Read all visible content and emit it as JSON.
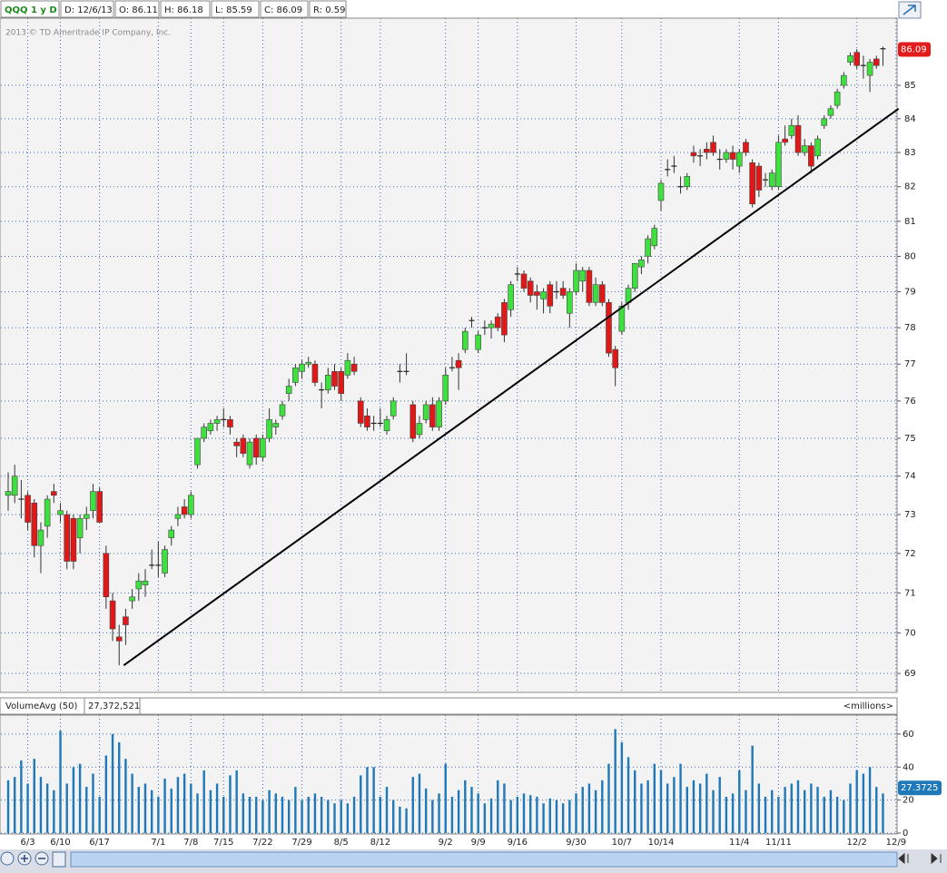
{
  "header": {
    "items": [
      "QQQ 1 y D",
      "D: 12/6/13",
      "O: 86.11",
      "H: 86.18",
      "L: 85.59",
      "C: 86.09",
      "R: 0.59"
    ],
    "copyright": "2013 © TD Ameritrade IP Company, Inc."
  },
  "chart_data": {
    "type": "candlestick",
    "log_scale": true,
    "grid": true,
    "colors": {
      "up": "#3ee03e",
      "down": "#e01818",
      "trendline": "#000000"
    },
    "categories": [
      null,
      null,
      null,
      "6/3",
      null,
      null,
      null,
      null,
      "6/10",
      null,
      null,
      null,
      null,
      null,
      "6/17",
      null,
      null,
      null,
      null,
      null,
      null,
      null,
      null,
      "7/1",
      null,
      null,
      null,
      null,
      "7/8",
      null,
      null,
      null,
      null,
      "7/15",
      null,
      null,
      null,
      null,
      null,
      "7/22",
      null,
      null,
      null,
      null,
      null,
      "7/29",
      null,
      null,
      null,
      null,
      null,
      "8/5",
      null,
      null,
      null,
      null,
      null,
      "8/12",
      null,
      null,
      null,
      null,
      null,
      null,
      null,
      null,
      null,
      "9/2",
      null,
      null,
      null,
      null,
      "9/9",
      null,
      null,
      null,
      null,
      null,
      "9/16",
      null,
      null,
      null,
      null,
      null,
      null,
      null,
      null,
      "9/30",
      null,
      null,
      null,
      null,
      null,
      null,
      "10/7",
      null,
      null,
      null,
      null,
      null,
      "10/14",
      null,
      null,
      null,
      null,
      null,
      null,
      null,
      null,
      null,
      null,
      null,
      "11/4",
      null,
      null,
      null,
      null,
      null,
      "11/11",
      null,
      null,
      null,
      null,
      null,
      null,
      null,
      null,
      null,
      null,
      null,
      "12/2",
      null,
      null,
      null,
      null,
      null,
      "12/9"
    ],
    "open": [
      73.5,
      73.5,
      73.4,
      73.5,
      73.3,
      72.2,
      72.7,
      73.6,
      73.0,
      73.0,
      72.9,
      72.4,
      72.9,
      73.1,
      73.6,
      72.0,
      70.8,
      69.9,
      70.4,
      70.8,
      71.1,
      71.2,
      71.7,
      71.7,
      71.5,
      72.4,
      72.9,
      73.2,
      73.0,
      74.3,
      75.0,
      75.2,
      75.4,
      75.5,
      75.5,
      74.9,
      75.0,
      74.3,
      75.0,
      74.5,
      75.0,
      75.3,
      75.6,
      76.2,
      76.5,
      76.8,
      77.0,
      77.0,
      76.3,
      76.3,
      76.8,
      76.8,
      76.7,
      77.0,
      76.0,
      75.6,
      75.4,
      75.4,
      75.2,
      75.6,
      76.8,
      76.8,
      75.9,
      75.1,
      75.5,
      75.9,
      75.3,
      76.0,
      76.9,
      77.1,
      77.4,
      78.2,
      77.4,
      78.0,
      78.0,
      78.3,
      78.7,
      78.5,
      79.5,
      79.5,
      79.3,
      79.0,
      78.8,
      79.2,
      79.0,
      79.1,
      78.4,
      79.0,
      79.3,
      79.6,
      78.7,
      79.2,
      78.7,
      77.4,
      77.9,
      78.7,
      79.1,
      79.7,
      80.0,
      80.3,
      81.6,
      82.5,
      82.6,
      82.0,
      82.0,
      83.0,
      82.9,
      83.1,
      83.3,
      82.8,
      82.8,
      83.0,
      82.6,
      83.3,
      82.7,
      82.6,
      82.2,
      82.0,
      82.0,
      83.4,
      83.5,
      83.8,
      83.0,
      83.2,
      82.9,
      83.8,
      84.1,
      84.4,
      85.0,
      85.7,
      86.0,
      85.6,
      85.3,
      85.8,
      86.11,
      null,
      null
    ],
    "high": [
      74.1,
      74.3,
      73.9,
      73.6,
      73.4,
      72.8,
      73.5,
      73.8,
      73.3,
      73.1,
      73.0,
      73.0,
      73.2,
      73.8,
      73.7,
      72.2,
      71.0,
      70.2,
      70.6,
      71.1,
      71.5,
      71.6,
      72.1,
      72.3,
      72.2,
      72.7,
      73.2,
      73.4,
      73.6,
      75.0,
      75.4,
      75.5,
      75.6,
      75.8,
      75.6,
      75.0,
      75.1,
      75.0,
      75.1,
      75.1,
      75.8,
      75.5,
      76.0,
      76.6,
      77.0,
      77.1,
      77.2,
      77.1,
      76.5,
      76.9,
      77.0,
      76.9,
      77.3,
      77.2,
      76.1,
      75.8,
      75.6,
      75.8,
      75.6,
      76.1,
      77.0,
      77.3,
      76.0,
      75.6,
      76.0,
      76.1,
      76.1,
      76.9,
      77.2,
      77.3,
      78.0,
      78.3,
      77.9,
      78.2,
      78.2,
      78.4,
      78.8,
      79.3,
      79.7,
      79.6,
      79.4,
      79.2,
      79.1,
      79.3,
      79.3,
      79.3,
      79.1,
      79.8,
      79.7,
      79.7,
      79.4,
      79.3,
      78.8,
      77.5,
      78.7,
      79.2,
      79.8,
      80.0,
      80.6,
      80.9,
      82.2,
      82.8,
      82.9,
      82.3,
      82.4,
      83.2,
      83.1,
      83.3,
      83.5,
      83.1,
      83.1,
      83.2,
      83.1,
      83.4,
      82.8,
      82.7,
      82.4,
      82.5,
      83.5,
      83.8,
      84.0,
      84.1,
      83.4,
      83.3,
      83.5,
      84.1,
      84.4,
      84.9,
      85.4,
      86.0,
      86.1,
      85.9,
      85.8,
      85.9,
      86.18,
      null,
      null
    ],
    "low": [
      73.1,
      73.3,
      72.9,
      72.6,
      71.9,
      71.5,
      72.4,
      73.3,
      72.8,
      71.6,
      71.6,
      72.0,
      72.6,
      72.9,
      72.8,
      70.6,
      69.8,
      69.2,
      69.7,
      70.6,
      70.8,
      70.9,
      71.6,
      71.4,
      71.4,
      72.2,
      72.7,
      72.9,
      72.9,
      74.2,
      74.9,
      75.1,
      75.2,
      75.3,
      75.1,
      74.5,
      74.5,
      74.2,
      74.3,
      74.4,
      74.9,
      75.1,
      75.5,
      76.0,
      76.4,
      76.6,
      76.9,
      76.4,
      75.8,
      76.2,
      76.3,
      76.0,
      76.6,
      76.7,
      75.3,
      75.2,
      75.2,
      75.3,
      75.1,
      75.5,
      76.5,
      76.7,
      74.9,
      75.0,
      75.4,
      75.2,
      75.2,
      75.9,
      76.8,
      76.3,
      77.3,
      78.0,
      77.3,
      77.8,
      77.7,
      77.9,
      77.6,
      78.3,
      79.3,
      79.0,
      78.7,
      78.5,
      78.4,
      78.4,
      78.8,
      78.8,
      78.0,
      78.9,
      79.0,
      78.6,
      78.6,
      78.6,
      77.2,
      76.4,
      77.8,
      78.5,
      79.0,
      79.5,
      79.8,
      80.2,
      81.3,
      82.3,
      82.4,
      81.8,
      81.9,
      82.7,
      82.6,
      82.8,
      82.9,
      82.5,
      82.7,
      82.5,
      82.4,
      82.9,
      81.4,
      81.7,
      82.0,
      81.9,
      81.9,
      83.2,
      83.4,
      82.9,
      82.9,
      82.4,
      82.8,
      83.7,
      84.0,
      84.3,
      84.9,
      85.6,
      85.5,
      85.2,
      84.8,
      85.5,
      85.59,
      null,
      null
    ],
    "close": [
      73.6,
      74.0,
      73.4,
      72.8,
      72.2,
      72.6,
      73.4,
      73.5,
      73.1,
      71.8,
      71.8,
      72.9,
      73.0,
      73.6,
      72.8,
      70.9,
      70.1,
      69.8,
      70.2,
      70.9,
      71.3,
      71.3,
      71.7,
      71.7,
      72.1,
      72.6,
      73.0,
      73.0,
      73.5,
      75.0,
      75.3,
      75.4,
      75.5,
      75.5,
      75.3,
      74.8,
      74.6,
      74.9,
      74.5,
      75.0,
      75.5,
      75.4,
      75.9,
      76.4,
      76.9,
      77.0,
      77.05,
      76.5,
      76.3,
      76.7,
      76.4,
      76.2,
      77.1,
      76.8,
      75.4,
      75.3,
      75.4,
      75.4,
      75.5,
      76.0,
      76.8,
      76.8,
      75.0,
      75.4,
      75.9,
      75.3,
      76.0,
      76.7,
      76.9,
      76.9,
      77.9,
      78.2,
      77.8,
      78.0,
      78.1,
      78.0,
      77.8,
      79.2,
      79.5,
      79.1,
      78.9,
      78.9,
      79.0,
      78.6,
      79.0,
      78.9,
      79.0,
      79.6,
      79.6,
      78.7,
      79.2,
      78.7,
      77.3,
      76.9,
      78.6,
      79.1,
      79.8,
      79.9,
      80.5,
      80.8,
      82.1,
      82.5,
      82.6,
      82.0,
      82.3,
      82.9,
      82.9,
      83.0,
      83.0,
      82.8,
      83.0,
      82.8,
      83.0,
      83.0,
      81.5,
      81.9,
      82.2,
      82.4,
      83.3,
      83.3,
      83.8,
      83.0,
      83.2,
      82.6,
      83.4,
      84.0,
      84.3,
      84.8,
      85.3,
      85.9,
      85.6,
      85.6,
      85.7,
      85.6,
      86.09,
      null,
      null
    ],
    "ylim": [
      68.56,
      87.05
    ],
    "yticks": [
      69,
      70,
      71,
      72,
      73,
      74,
      75,
      76,
      77,
      78,
      79,
      80,
      81,
      82,
      83,
      84,
      85
    ],
    "trendline": {
      "start": [
        17.7,
        69.2
      ],
      "end": [
        136.4,
        84.3
      ]
    },
    "volume": {
      "title": "VolumeAvg (50)",
      "avg_text": "27,372,521",
      "unit": "<millions>",
      "color": "#1f78b8",
      "avg": 27.3725,
      "values": [
        32,
        34,
        44,
        30,
        45,
        34,
        30,
        26,
        62,
        30,
        40,
        42,
        28,
        36,
        22,
        47,
        60,
        55,
        45,
        36,
        28,
        30,
        26,
        22,
        33,
        27,
        34,
        36,
        30,
        24,
        38,
        26,
        30,
        22,
        35,
        38,
        24,
        22,
        22,
        20,
        26,
        24,
        22,
        20,
        28,
        20,
        22,
        24,
        22,
        20,
        18,
        20,
        18,
        22,
        35,
        40,
        40,
        22,
        28,
        20,
        16,
        15,
        34,
        36,
        27,
        20,
        24,
        42,
        22,
        26,
        32,
        28,
        24,
        18,
        21,
        32,
        30,
        20,
        22,
        24,
        23,
        22,
        18,
        21,
        20,
        18,
        20,
        24,
        28,
        30,
        26,
        32,
        42,
        63,
        55,
        46,
        38,
        30,
        32,
        42,
        38,
        30,
        34,
        42,
        28,
        32,
        30,
        36,
        26,
        34,
        22,
        24,
        38,
        26,
        53,
        30,
        22,
        26,
        22,
        28,
        30,
        32,
        26,
        30,
        28,
        22,
        26,
        22,
        20,
        30,
        38,
        36,
        40,
        28,
        24,
        null,
        null
      ],
      "ylim": [
        0,
        70.4
      ],
      "yticks": [
        0,
        20,
        40,
        60
      ]
    }
  }
}
